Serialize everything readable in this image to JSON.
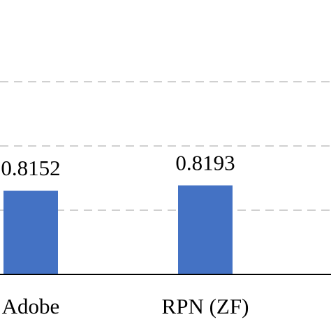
{
  "chart_data": {
    "type": "bar",
    "categories": [
      "Adobe",
      "RPN (ZF)"
    ],
    "values": [
      0.8152,
      0.8193
    ],
    "value_labels": [
      "0.8152",
      "0.8193"
    ],
    "color": "#4472c4",
    "ylim": [
      0.75,
      0.95
    ],
    "yticks": [
      0.8,
      0.85,
      0.9
    ],
    "grid": true
  }
}
